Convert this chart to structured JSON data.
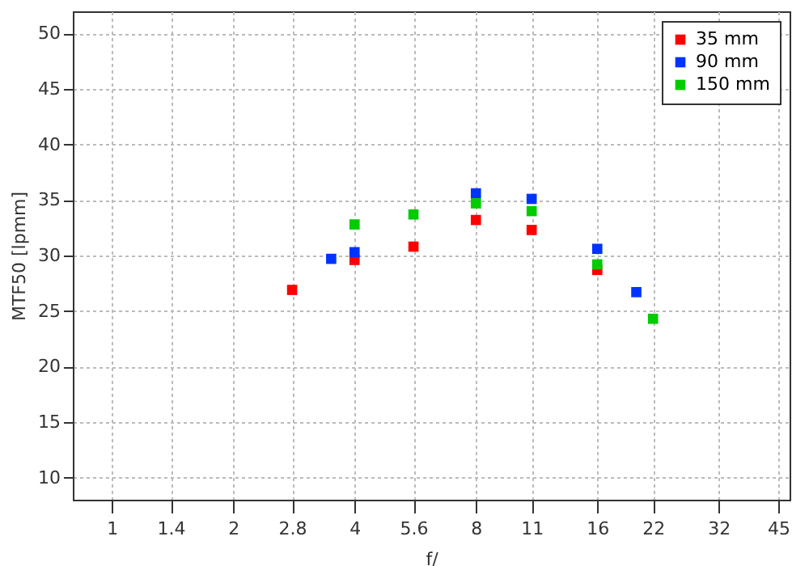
{
  "chart_data": {
    "type": "scatter",
    "xlabel": "f/",
    "ylabel": "MTF50 [lpmm]",
    "log": "x",
    "marker": "square",
    "grid": true,
    "legend": "top right",
    "xlim": [
      0.8,
      48
    ],
    "xticks": [
      1,
      1.4,
      2,
      2.8,
      4,
      5.6,
      8,
      11,
      16,
      22,
      32,
      45
    ],
    "ylim": [
      8,
      52
    ],
    "yticks": [
      10,
      15,
      20,
      25,
      30,
      35,
      40,
      45,
      50
    ],
    "series": [
      {
        "name": "35 mm",
        "color": "#ff0000",
        "x": [
          2.8,
          4,
          5.6,
          8,
          11,
          16
        ],
        "values": [
          26.9,
          29.6,
          30.8,
          33.2,
          32.3,
          28.7
        ]
      },
      {
        "name": "90 mm",
        "color": "#0033ff",
        "x": [
          3.5,
          4,
          8,
          11,
          16,
          20
        ],
        "values": [
          29.7,
          30.3,
          35.6,
          35.1,
          30.6,
          26.7
        ]
      },
      {
        "name": "150 mm",
        "color": "#00cc00",
        "x": [
          4,
          5.6,
          8,
          11,
          16,
          22
        ],
        "values": [
          32.8,
          33.7,
          34.7,
          34.0,
          29.2,
          24.3
        ]
      }
    ]
  }
}
